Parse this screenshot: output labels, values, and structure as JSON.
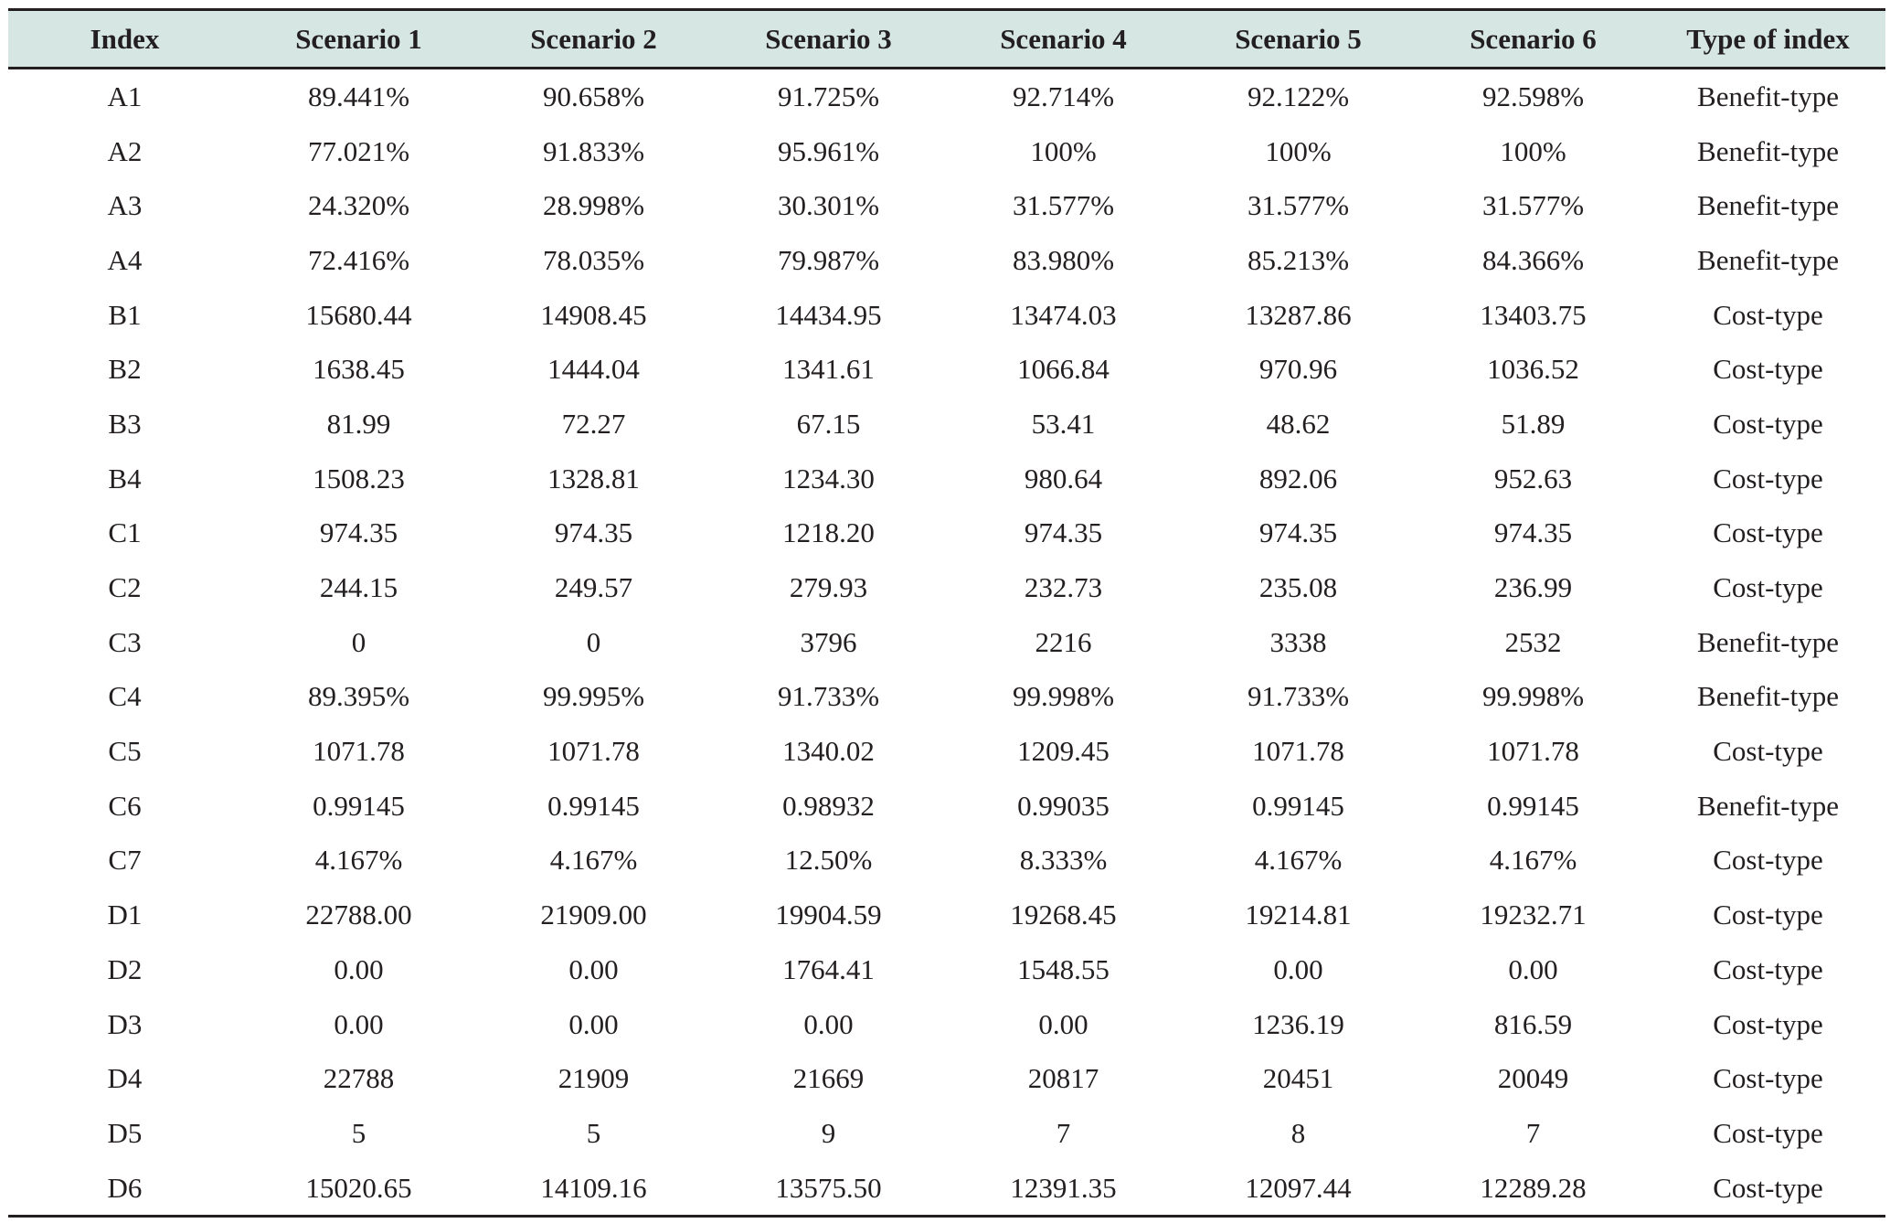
{
  "table": {
    "headers": [
      "Index",
      "Scenario 1",
      "Scenario 2",
      "Scenario 3",
      "Scenario 4",
      "Scenario 5",
      "Scenario 6",
      "Type of index"
    ],
    "rows": [
      [
        "A1",
        "89.441%",
        "90.658%",
        "91.725%",
        "92.714%",
        "92.122%",
        "92.598%",
        "Benefit-type"
      ],
      [
        "A2",
        "77.021%",
        "91.833%",
        "95.961%",
        "100%",
        "100%",
        "100%",
        "Benefit-type"
      ],
      [
        "A3",
        "24.320%",
        "28.998%",
        "30.301%",
        "31.577%",
        "31.577%",
        "31.577%",
        "Benefit-type"
      ],
      [
        "A4",
        "72.416%",
        "78.035%",
        "79.987%",
        "83.980%",
        "85.213%",
        "84.366%",
        "Benefit-type"
      ],
      [
        "B1",
        "15680.44",
        "14908.45",
        "14434.95",
        "13474.03",
        "13287.86",
        "13403.75",
        "Cost-type"
      ],
      [
        "B2",
        "1638.45",
        "1444.04",
        "1341.61",
        "1066.84",
        "970.96",
        "1036.52",
        "Cost-type"
      ],
      [
        "B3",
        "81.99",
        "72.27",
        "67.15",
        "53.41",
        "48.62",
        "51.89",
        "Cost-type"
      ],
      [
        "B4",
        "1508.23",
        "1328.81",
        "1234.30",
        "980.64",
        "892.06",
        "952.63",
        "Cost-type"
      ],
      [
        "C1",
        "974.35",
        "974.35",
        "1218.20",
        "974.35",
        "974.35",
        "974.35",
        "Cost-type"
      ],
      [
        "C2",
        "244.15",
        "249.57",
        "279.93",
        "232.73",
        "235.08",
        "236.99",
        "Cost-type"
      ],
      [
        "C3",
        "0",
        "0",
        "3796",
        "2216",
        "3338",
        "2532",
        "Benefit-type"
      ],
      [
        "C4",
        "89.395%",
        "99.995%",
        "91.733%",
        "99.998%",
        "91.733%",
        "99.998%",
        "Benefit-type"
      ],
      [
        "C5",
        "1071.78",
        "1071.78",
        "1340.02",
        "1209.45",
        "1071.78",
        "1071.78",
        "Cost-type"
      ],
      [
        "C6",
        "0.99145",
        "0.99145",
        "0.98932",
        "0.99035",
        "0.99145",
        "0.99145",
        "Benefit-type"
      ],
      [
        "C7",
        "4.167%",
        "4.167%",
        "12.50%",
        "8.333%",
        "4.167%",
        "4.167%",
        "Cost-type"
      ],
      [
        "D1",
        "22788.00",
        "21909.00",
        "19904.59",
        "19268.45",
        "19214.81",
        "19232.71",
        "Cost-type"
      ],
      [
        "D2",
        "0.00",
        "0.00",
        "1764.41",
        "1548.55",
        "0.00",
        "0.00",
        "Cost-type"
      ],
      [
        "D3",
        "0.00",
        "0.00",
        "0.00",
        "0.00",
        "1236.19",
        "816.59",
        "Cost-type"
      ],
      [
        "D4",
        "22788",
        "21909",
        "21669",
        "20817",
        "20451",
        "20049",
        "Cost-type"
      ],
      [
        "D5",
        "5",
        "5",
        "9",
        "7",
        "8",
        "7",
        "Cost-type"
      ],
      [
        "D6",
        "15020.65",
        "14109.16",
        "13575.50",
        "12391.35",
        "12097.44",
        "12289.28",
        "Cost-type"
      ]
    ]
  }
}
